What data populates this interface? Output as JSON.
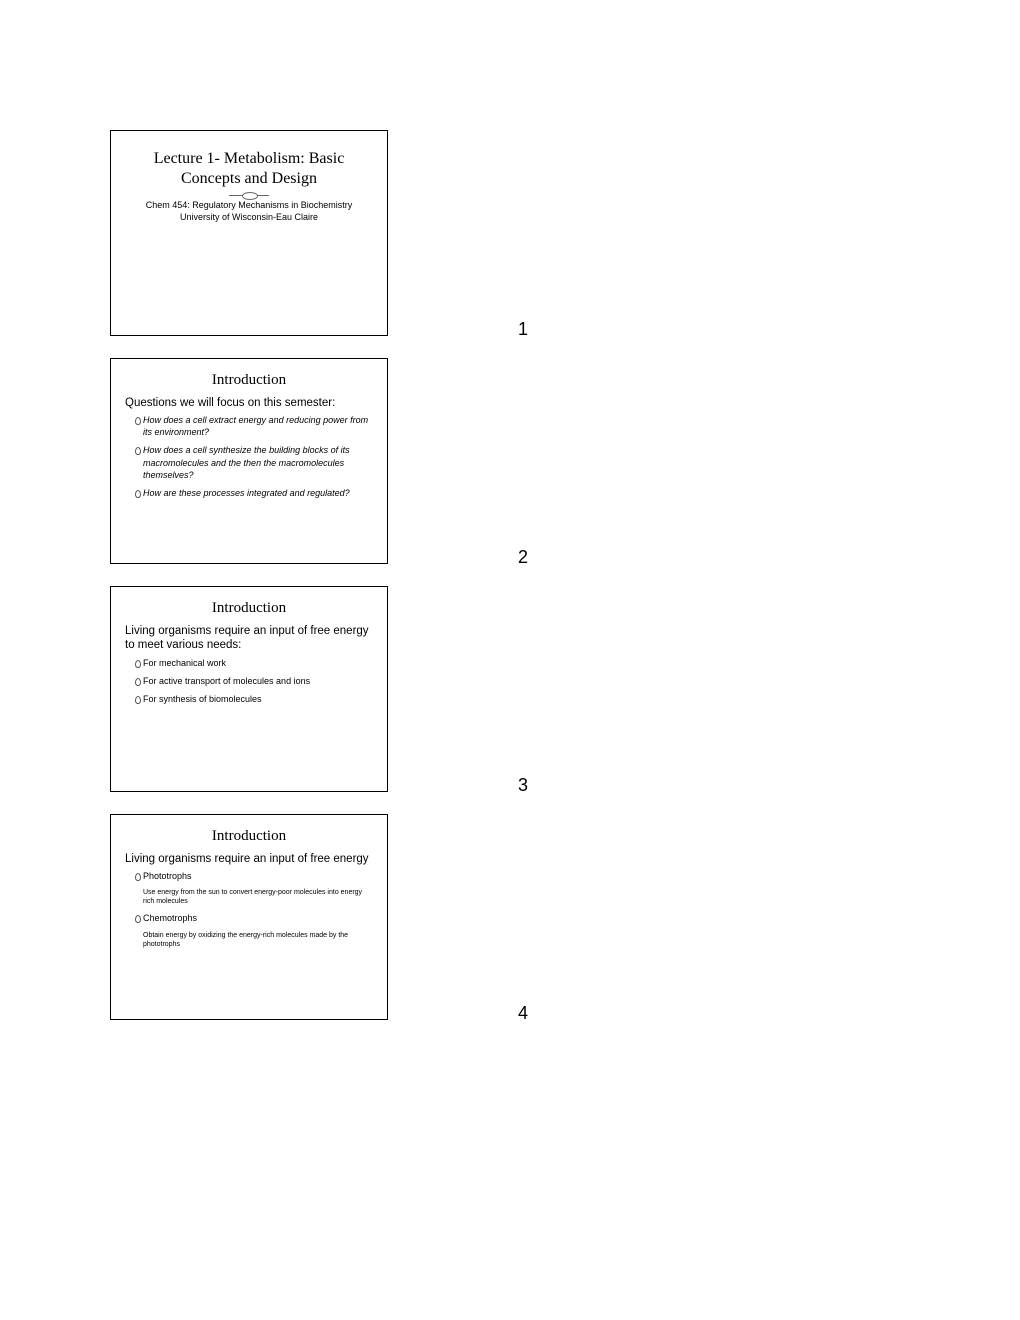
{
  "page": {
    "background_color": "#ffffff",
    "text_color": "#000000",
    "border_color": "#000000",
    "slide_width": 278,
    "slide_height": 206,
    "title_font": "Georgia serif",
    "body_font": "Trebuchet MS sans-serif"
  },
  "slides": [
    {
      "number": "1",
      "title": "Lecture 1- Metabolism: Basic Concepts and Design",
      "subtitle_line1": "Chem 454: Regulatory Mechanisms in Biochemistry",
      "subtitle_line2": "University of Wisconsin-Eau Claire"
    },
    {
      "number": "2",
      "title": "Introduction",
      "lead": "Questions we will focus on this semester:",
      "bullets": [
        "How does a cell extract energy and reducing power from its environment?",
        "How does a cell synthesize the building blocks of its macromolecules and the then the macromolecules themselves?",
        "How are these processes integrated and regulated?"
      ],
      "bullets_italic": true
    },
    {
      "number": "3",
      "title": "Introduction",
      "lead": "Living organisms require an input of free energy to meet various needs:",
      "bullets": [
        "For mechanical work",
        "For active transport of molecules and ions",
        "For synthesis of biomolecules"
      ],
      "bullets_italic": false
    },
    {
      "number": "4",
      "title": "Introduction",
      "lead": "Living organisms require an input of free energy",
      "items": [
        {
          "label": "Phototrophs",
          "desc": "Use energy from the sun to convert energy-poor molecules into energy rich molecules"
        },
        {
          "label": "Chemotrophs",
          "desc": "Obtain energy by oxidizing the energy-rich molecules made by the phototrophs"
        }
      ]
    }
  ]
}
